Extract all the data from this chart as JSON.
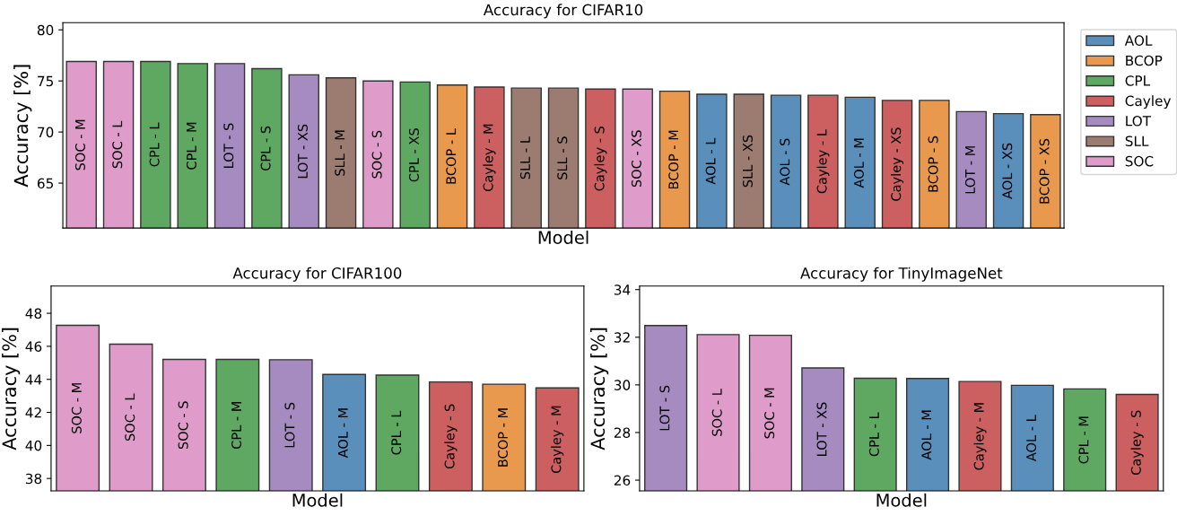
{
  "chart_data": [
    {
      "type": "bar",
      "title": "Accuracy for CIFAR10",
      "xlabel": "Model",
      "ylabel": "Accuracy [%]",
      "legend": "right",
      "tick_labels": "y",
      "grid": false,
      "ylim": [
        60.6,
        80.7
      ],
      "yticks": [
        65,
        70,
        75,
        80
      ],
      "categories": [
        "SOC - M",
        "SOC - L",
        "CPL - L",
        "CPL - M",
        "LOT - S",
        "CPL - S",
        "LOT - XS",
        "SLL - M",
        "SOC - S",
        "CPL - XS",
        "BCOP - L",
        "Cayley - M",
        "SLL - L",
        "SLL - S",
        "Cayley - S",
        "SOC - XS",
        "BCOP - M",
        "AOL - L",
        "SLL - XS",
        "AOL - S",
        "Cayley - L",
        "AOL - M",
        "Cayley - XS",
        "BCOP - S",
        "LOT - M",
        "AOL - XS",
        "BCOP - XS"
      ],
      "series": [
        {
          "name": "AOL",
          "color": "#5a8fbb",
          "values": [
            null,
            null,
            null,
            null,
            null,
            null,
            null,
            null,
            null,
            null,
            null,
            null,
            null,
            null,
            null,
            null,
            null,
            73.7,
            null,
            73.6,
            null,
            73.4,
            null,
            null,
            null,
            71.8,
            null
          ]
        },
        {
          "name": "BCOP",
          "color": "#e8994e",
          "values": [
            null,
            null,
            null,
            null,
            null,
            null,
            null,
            null,
            null,
            null,
            74.6,
            null,
            null,
            null,
            null,
            null,
            74.0,
            null,
            null,
            null,
            null,
            null,
            null,
            73.1,
            null,
            null,
            71.7
          ]
        },
        {
          "name": "CPL",
          "color": "#5fa862",
          "values": [
            null,
            null,
            76.9,
            76.7,
            null,
            76.2,
            null,
            null,
            null,
            74.9,
            null,
            null,
            null,
            null,
            null,
            null,
            null,
            null,
            null,
            null,
            null,
            null,
            null,
            null,
            null,
            null,
            null
          ]
        },
        {
          "name": "Cayley",
          "color": "#cc6060",
          "values": [
            null,
            null,
            null,
            null,
            null,
            null,
            null,
            null,
            null,
            null,
            null,
            74.4,
            null,
            null,
            74.2,
            null,
            null,
            null,
            null,
            null,
            73.6,
            null,
            73.1,
            null,
            null,
            null,
            null
          ]
        },
        {
          "name": "LOT",
          "color": "#a68bc0",
          "values": [
            null,
            null,
            null,
            null,
            76.7,
            null,
            75.6,
            null,
            null,
            null,
            null,
            null,
            null,
            null,
            null,
            null,
            null,
            null,
            null,
            null,
            null,
            null,
            null,
            null,
            72.0,
            null,
            null
          ]
        },
        {
          "name": "SLL",
          "color": "#9c7b71",
          "values": [
            null,
            null,
            null,
            null,
            null,
            null,
            null,
            75.3,
            null,
            null,
            null,
            null,
            74.3,
            74.3,
            null,
            null,
            null,
            null,
            73.7,
            null,
            null,
            null,
            null,
            null,
            null,
            null,
            null
          ]
        },
        {
          "name": "SOC",
          "color": "#df9bca",
          "values": [
            76.9,
            76.9,
            null,
            null,
            null,
            null,
            null,
            null,
            75.0,
            null,
            null,
            null,
            null,
            null,
            null,
            74.2,
            null,
            null,
            null,
            null,
            null,
            null,
            null,
            null,
            null,
            null,
            null
          ]
        }
      ]
    },
    {
      "type": "bar",
      "title": "Accuracy for CIFAR100",
      "xlabel": "Model",
      "ylabel": "Accuracy [%]",
      "tick_labels": "y",
      "grid": false,
      "ylim": [
        37.25,
        49.65
      ],
      "yticks": [
        38,
        40,
        42,
        44,
        46,
        48
      ],
      "categories": [
        "SOC - M",
        "SOC - L",
        "SOC - S",
        "CPL - M",
        "LOT - S",
        "AOL - M",
        "CPL - L",
        "Cayley - S",
        "BCOP - M",
        "Cayley - M"
      ],
      "values": [
        47.27,
        46.13,
        45.21,
        45.21,
        45.19,
        44.3,
        44.26,
        43.84,
        43.71,
        43.48
      ],
      "colors": [
        "#df9bca",
        "#df9bca",
        "#df9bca",
        "#5fa862",
        "#a68bc0",
        "#5a8fbb",
        "#5fa862",
        "#cc6060",
        "#e8994e",
        "#cc6060"
      ]
    },
    {
      "type": "bar",
      "title": "Accuracy for TinyImageNet",
      "xlabel": "Model",
      "ylabel": "Accuracy [%]",
      "tick_labels": "y",
      "grid": false,
      "ylim": [
        25.55,
        34.15
      ],
      "yticks": [
        26,
        28,
        30,
        32,
        34
      ],
      "categories": [
        "LOT - S",
        "SOC - L",
        "SOC - M",
        "LOT - XS",
        "CPL - L",
        "AOL - M",
        "Cayley - M",
        "AOL - L",
        "CPL - M",
        "Cayley - S"
      ],
      "values": [
        32.49,
        32.11,
        32.08,
        30.71,
        30.28,
        30.27,
        30.14,
        29.98,
        29.83,
        29.6
      ],
      "colors": [
        "#a68bc0",
        "#df9bca",
        "#df9bca",
        "#a68bc0",
        "#5fa862",
        "#5a8fbb",
        "#cc6060",
        "#5a8fbb",
        "#5fa862",
        "#cc6060"
      ]
    }
  ]
}
